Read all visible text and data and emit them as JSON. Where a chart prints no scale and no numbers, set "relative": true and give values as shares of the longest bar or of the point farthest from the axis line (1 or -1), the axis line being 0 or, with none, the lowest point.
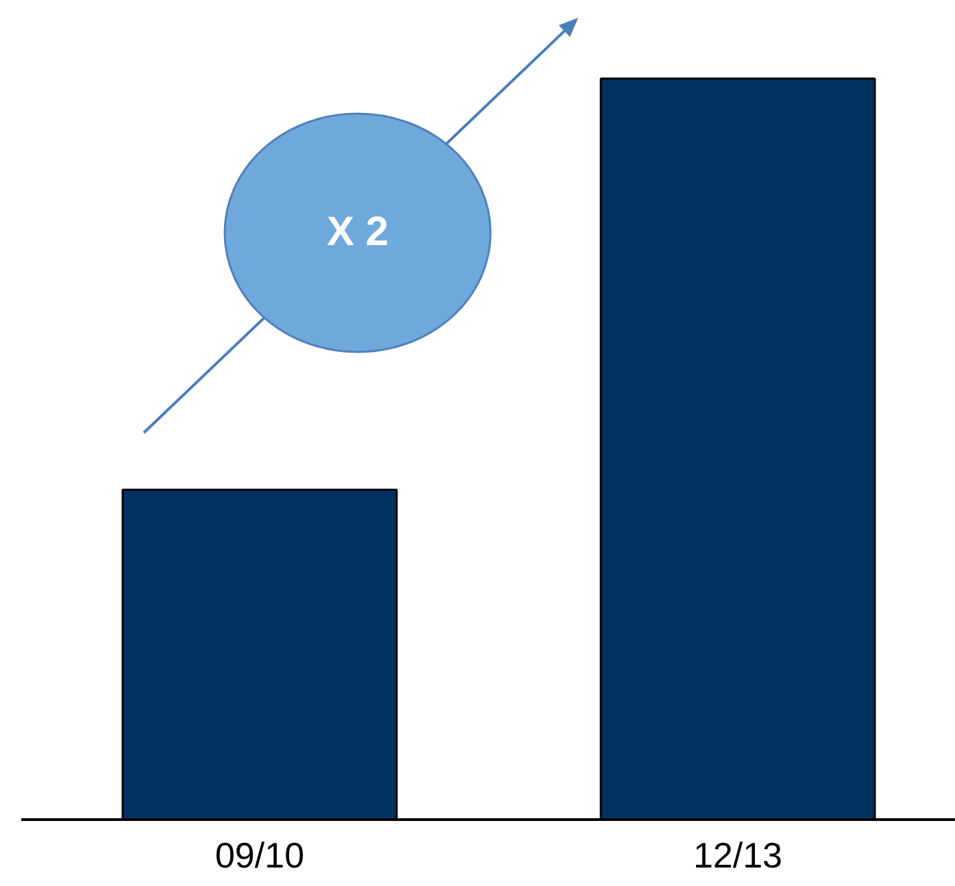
{
  "chart_data": {
    "type": "bar",
    "categories": [
      "09/10",
      "12/13"
    ],
    "values": [
      0.445,
      1
    ],
    "color": "#02315f",
    "relative": true,
    "annotations": [
      "X 2"
    ]
  }
}
